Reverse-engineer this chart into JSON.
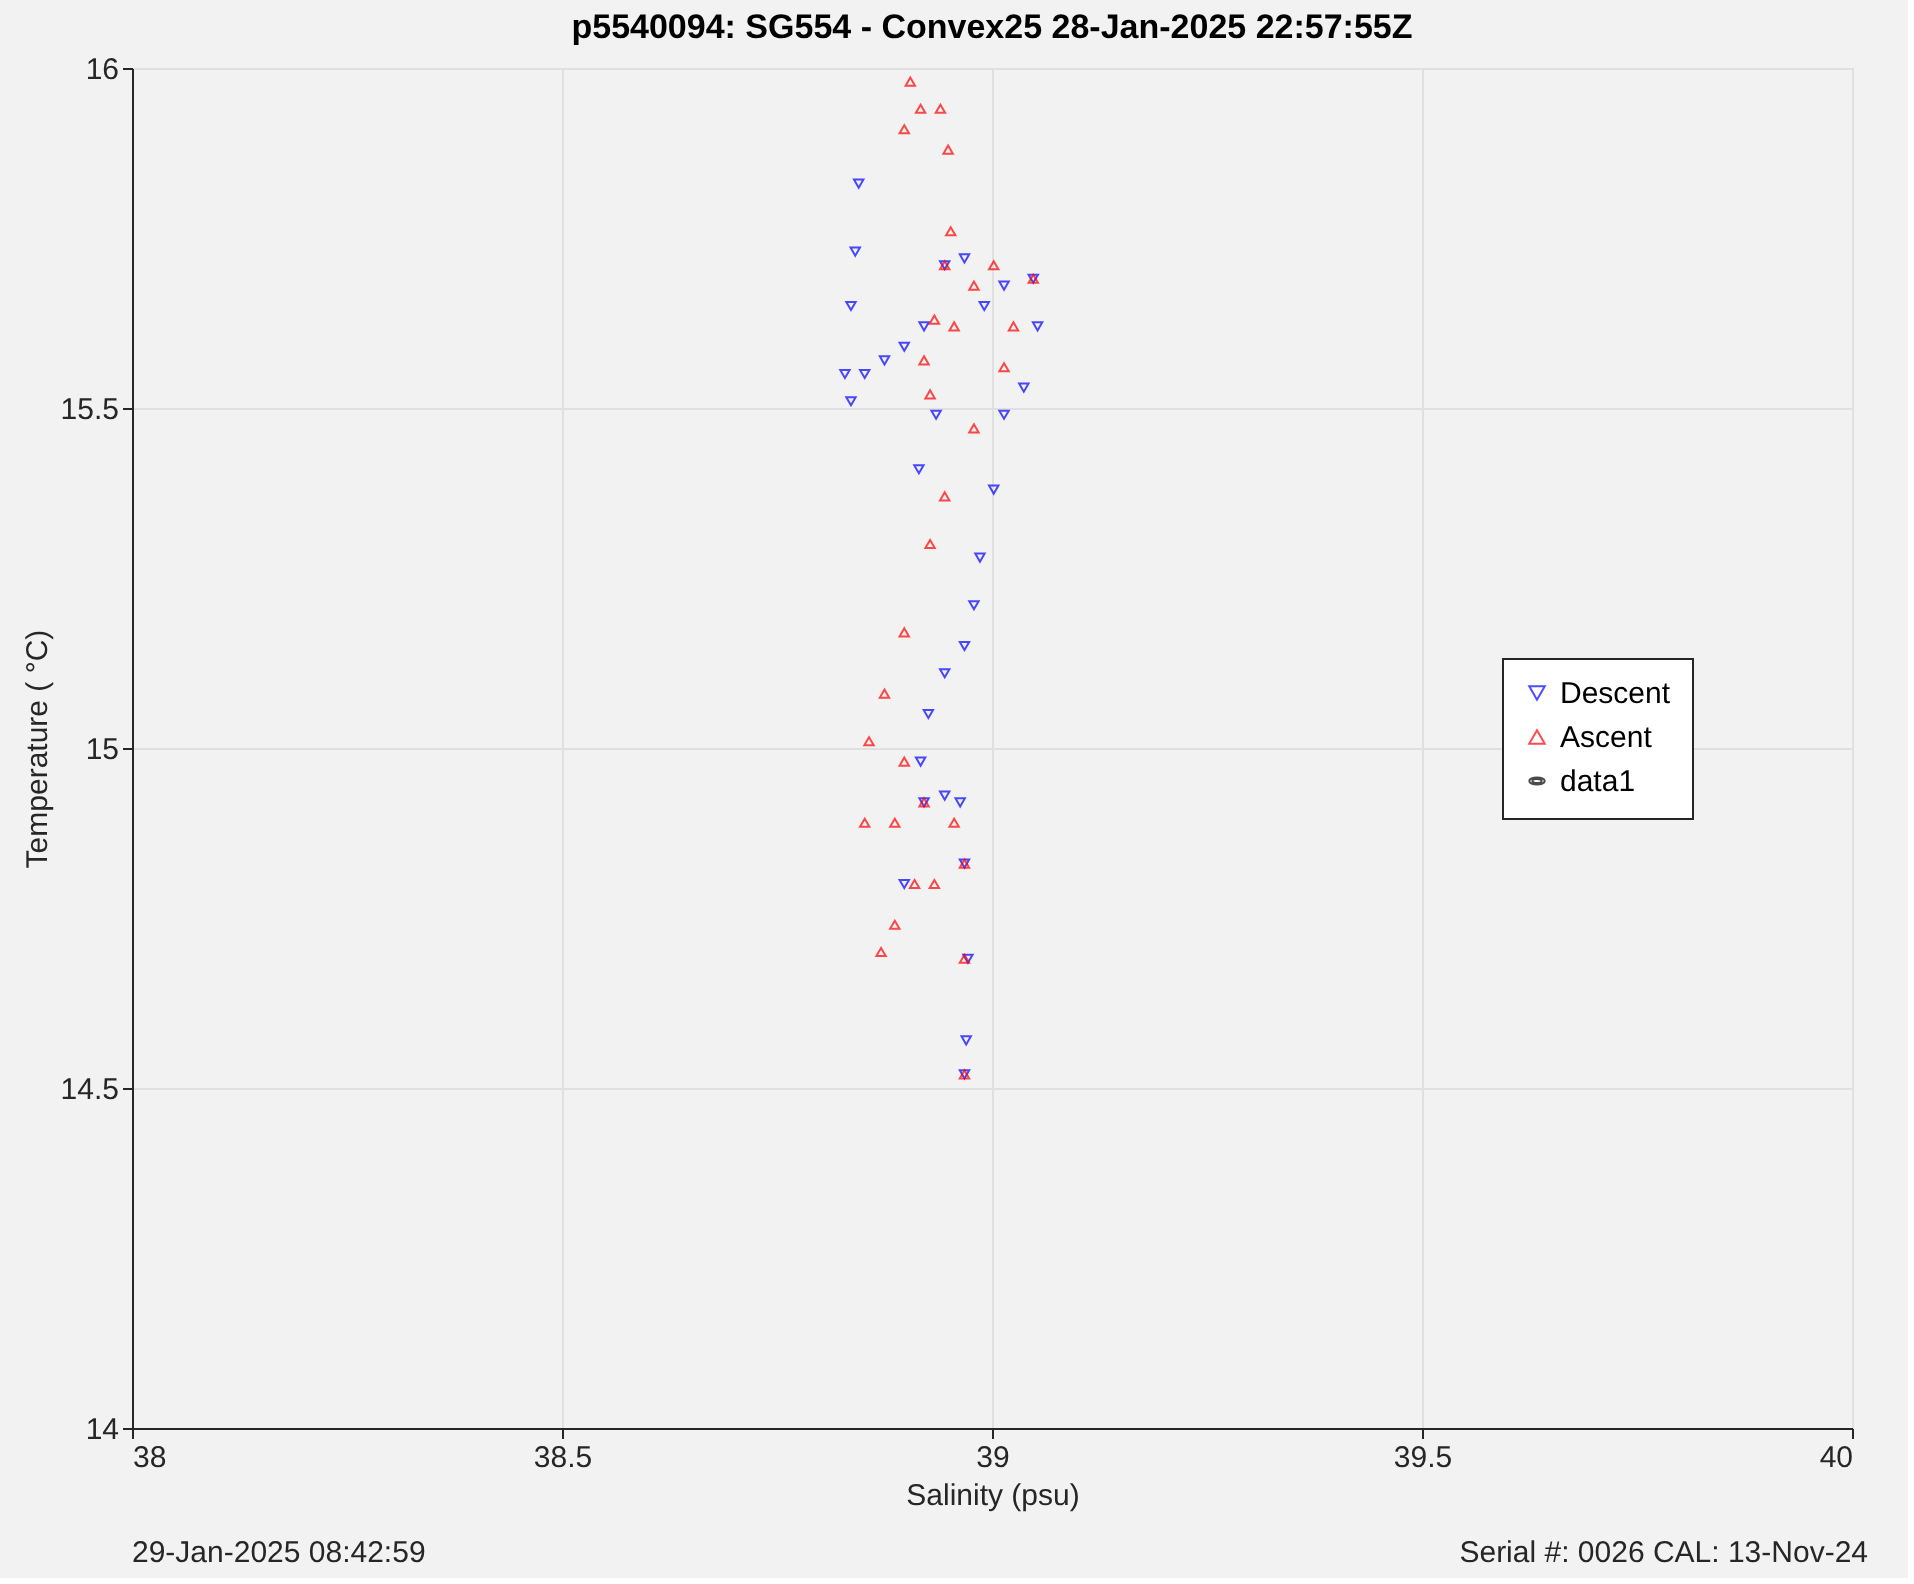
{
  "chart_data": {
    "type": "scatter",
    "title": "p5540094: SG554 - Convex25 28-Jan-2025 22:57:55Z",
    "xlabel": "Salinity (psu)",
    "ylabel": "Temperature (  °C)",
    "xlim": [
      38,
      40
    ],
    "xticks": [
      38,
      38.5,
      39,
      39.5,
      40
    ],
    "ylim": [
      14,
      16
    ],
    "yticks": [
      14,
      14.5,
      15,
      15.5,
      16
    ],
    "grid": true,
    "legend": "right",
    "annotations": [
      "29-Jan-2025 08:42:59",
      "Serial #: 0026 CAL: 13-Nov-24"
    ],
    "series": [
      {
        "name": "Descent",
        "color": "#0000ff",
        "marker": "triangle-down",
        "x": [
          38.845,
          38.841,
          38.836,
          38.829,
          38.836,
          38.852,
          38.875,
          38.898,
          38.921,
          38.945,
          38.968,
          38.991,
          39.014,
          39.048,
          39.053,
          39.037,
          39.014,
          39.002,
          38.986,
          38.979,
          38.968,
          38.945,
          38.926,
          38.917,
          38.921,
          38.945,
          38.963,
          38.968,
          38.972,
          38.97,
          38.968,
          38.915,
          38.935,
          38.898
        ],
        "values": [
          15.83,
          15.73,
          15.65,
          15.55,
          15.51,
          15.55,
          15.57,
          15.59,
          15.62,
          15.71,
          15.72,
          15.65,
          15.68,
          15.69,
          15.62,
          15.53,
          15.49,
          15.38,
          15.28,
          15.21,
          15.15,
          15.11,
          15.05,
          14.98,
          14.92,
          14.93,
          14.92,
          14.83,
          14.69,
          14.57,
          14.52,
          15.41,
          15.49,
          14.8
        ]
      },
      {
        "name": "Ascent",
        "color": "#ff0000",
        "marker": "triangle-up",
        "x": [
          38.905,
          38.898,
          38.917,
          38.94,
          38.949,
          38.952,
          38.945,
          38.933,
          38.921,
          38.928,
          38.956,
          38.979,
          39.002,
          39.025,
          39.048,
          39.014,
          38.979,
          38.945,
          38.928,
          38.898,
          38.875,
          38.857,
          38.852,
          38.887,
          38.898,
          38.921,
          38.91,
          38.887,
          38.871,
          38.933,
          38.956,
          38.968,
          38.968,
          38.968
        ],
        "values": [
          15.98,
          15.91,
          15.94,
          15.94,
          15.88,
          15.76,
          15.71,
          15.63,
          15.57,
          15.52,
          15.62,
          15.68,
          15.71,
          15.62,
          15.69,
          15.56,
          15.47,
          15.37,
          15.3,
          15.17,
          15.08,
          15.01,
          14.89,
          14.89,
          14.98,
          14.92,
          14.8,
          14.74,
          14.7,
          14.8,
          14.89,
          14.83,
          14.69,
          14.52
        ]
      },
      {
        "name": "data1",
        "color": "#000000",
        "marker": "ellipse"
      }
    ]
  }
}
